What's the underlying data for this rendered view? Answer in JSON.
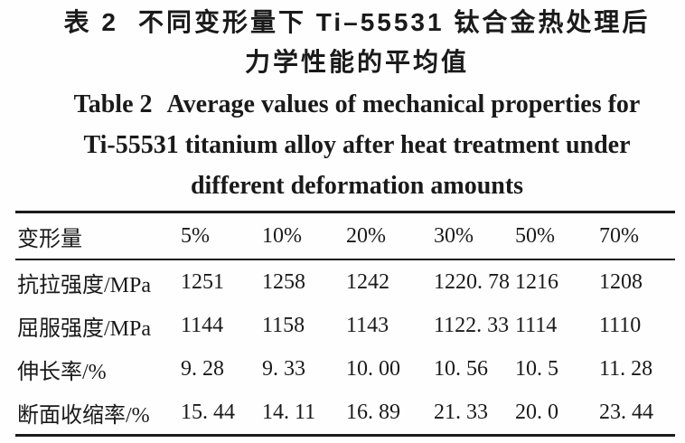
{
  "page": {
    "ink_color": "#1a1a1a",
    "background_color": "#fefefe"
  },
  "caption_zh": {
    "label": "表 2",
    "line1_text": "不同变形量下 Ti–55531 钛合金热处理后",
    "line2_text": "力学性能的平均值"
  },
  "caption_en": {
    "label": "Table 2",
    "line1_text": "Average values of mechanical properties for",
    "line2_text": "Ti-55531 titanium alloy after heat treatment under",
    "line3_text": "different deformation amounts"
  },
  "chart_data": {
    "type": "table",
    "title": "表 2 不同变形量下 Ti–55531 钛合金热处理后力学性能的平均值 / Table 2 Average values of mechanical properties for Ti-55531 titanium alloy after heat treatment under different deformation amounts",
    "columns": [
      "变形量",
      "5%",
      "10%",
      "20%",
      "30%",
      "50%",
      "70%"
    ],
    "rows": [
      {
        "label": "抗拉强度/MPa",
        "values": [
          "1251",
          "1258",
          "1242",
          "1220. 78",
          "1216",
          "1208"
        ]
      },
      {
        "label": "屈服强度/MPa",
        "values": [
          "1144",
          "1158",
          "1143",
          "1122. 33",
          "1114",
          "1110"
        ]
      },
      {
        "label": "伸长率/%",
        "values": [
          "9. 28",
          "9. 33",
          "10. 00",
          "10. 56",
          "10. 5",
          "11. 28"
        ]
      },
      {
        "label": "断面收缩率/%",
        "values": [
          "15. 44",
          "14. 11",
          "16. 89",
          "21. 33",
          "20. 0",
          "23. 44"
        ]
      }
    ]
  }
}
